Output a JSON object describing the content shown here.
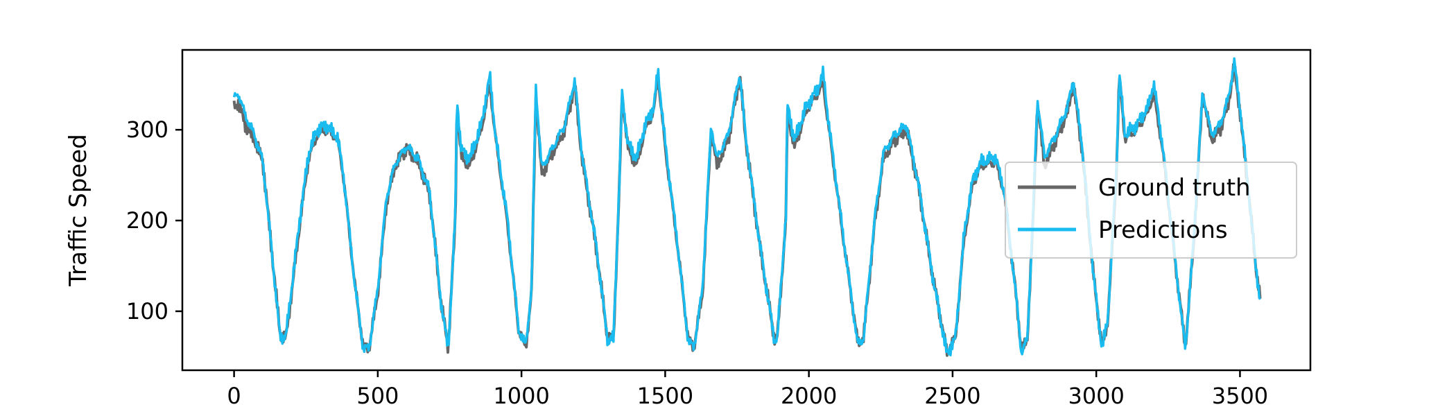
{
  "chart_data": {
    "type": "line",
    "title": "",
    "xlabel": "",
    "ylabel": "Traffic Speed",
    "xlim": [
      -180,
      3745
    ],
    "ylim": [
      35,
      388
    ],
    "xticks": [
      0,
      500,
      1000,
      1500,
      2000,
      2500,
      3000,
      3500
    ],
    "yticks": [
      100,
      200,
      300
    ],
    "legend_position": "right",
    "grid": false,
    "x_count": 3570,
    "series": [
      {
        "name": "Ground truth",
        "color": "#666666",
        "keypoints": [
          [
            0,
            325
          ],
          [
            15,
            330
          ],
          [
            40,
            305
          ],
          [
            70,
            290
          ],
          [
            100,
            265
          ],
          [
            130,
            170
          ],
          [
            160,
            75
          ],
          [
            180,
            70
          ],
          [
            200,
            120
          ],
          [
            230,
            200
          ],
          [
            260,
            270
          ],
          [
            290,
            295
          ],
          [
            320,
            300
          ],
          [
            360,
            290
          ],
          [
            380,
            250
          ],
          [
            420,
            130
          ],
          [
            450,
            60
          ],
          [
            470,
            60
          ],
          [
            500,
            120
          ],
          [
            530,
            220
          ],
          [
            560,
            260
          ],
          [
            600,
            280
          ],
          [
            640,
            265
          ],
          [
            680,
            230
          ],
          [
            720,
            110
          ],
          [
            745,
            60
          ],
          [
            770,
            200
          ],
          [
            775,
            330
          ],
          [
            790,
            270
          ],
          [
            820,
            260
          ],
          [
            860,
            300
          ],
          [
            890,
            350
          ],
          [
            910,
            290
          ],
          [
            950,
            200
          ],
          [
            990,
            80
          ],
          [
            1015,
            60
          ],
          [
            1035,
            120
          ],
          [
            1050,
            340
          ],
          [
            1070,
            250
          ],
          [
            1100,
            270
          ],
          [
            1150,
            300
          ],
          [
            1185,
            350
          ],
          [
            1210,
            270
          ],
          [
            1260,
            170
          ],
          [
            1300,
            70
          ],
          [
            1320,
            70
          ],
          [
            1340,
            230
          ],
          [
            1350,
            340
          ],
          [
            1370,
            280
          ],
          [
            1400,
            260
          ],
          [
            1430,
            300
          ],
          [
            1460,
            320
          ],
          [
            1475,
            360
          ],
          [
            1500,
            280
          ],
          [
            1540,
            180
          ],
          [
            1580,
            70
          ],
          [
            1600,
            60
          ],
          [
            1630,
            120
          ],
          [
            1660,
            300
          ],
          [
            1680,
            260
          ],
          [
            1720,
            290
          ],
          [
            1760,
            360
          ],
          [
            1780,
            290
          ],
          [
            1830,
            170
          ],
          [
            1880,
            70
          ],
          [
            1890,
            70
          ],
          [
            1920,
            200
          ],
          [
            1925,
            320
          ],
          [
            1950,
            280
          ],
          [
            1990,
            320
          ],
          [
            2030,
            340
          ],
          [
            2050,
            350
          ],
          [
            2070,
            300
          ],
          [
            2120,
            180
          ],
          [
            2170,
            65
          ],
          [
            2190,
            70
          ],
          [
            2230,
            200
          ],
          [
            2260,
            270
          ],
          [
            2300,
            290
          ],
          [
            2340,
            300
          ],
          [
            2380,
            240
          ],
          [
            2430,
            140
          ],
          [
            2480,
            55
          ],
          [
            2510,
            70
          ],
          [
            2540,
            180
          ],
          [
            2570,
            240
          ],
          [
            2600,
            260
          ],
          [
            2650,
            265
          ],
          [
            2680,
            230
          ],
          [
            2720,
            120
          ],
          [
            2740,
            55
          ],
          [
            2760,
            70
          ],
          [
            2780,
            200
          ],
          [
            2795,
            330
          ],
          [
            2820,
            260
          ],
          [
            2860,
            290
          ],
          [
            2900,
            320
          ],
          [
            2920,
            350
          ],
          [
            2950,
            280
          ],
          [
            2990,
            140
          ],
          [
            3020,
            60
          ],
          [
            3040,
            90
          ],
          [
            3070,
            250
          ],
          [
            3080,
            360
          ],
          [
            3100,
            290
          ],
          [
            3140,
            300
          ],
          [
            3180,
            320
          ],
          [
            3200,
            340
          ],
          [
            3230,
            280
          ],
          [
            3280,
            140
          ],
          [
            3310,
            60
          ],
          [
            3340,
            180
          ],
          [
            3370,
            340
          ],
          [
            3400,
            290
          ],
          [
            3430,
            300
          ],
          [
            3460,
            330
          ],
          [
            3480,
            370
          ],
          [
            3500,
            320
          ],
          [
            3530,
            230
          ],
          [
            3555,
            150
          ],
          [
            3570,
            115
          ]
        ]
      },
      {
        "name": "Predictions",
        "color": "#1abcf0",
        "keypoints": [
          [
            0,
            335
          ],
          [
            15,
            340
          ],
          [
            40,
            315
          ],
          [
            70,
            295
          ],
          [
            100,
            265
          ],
          [
            130,
            170
          ],
          [
            160,
            72
          ],
          [
            180,
            72
          ],
          [
            200,
            125
          ],
          [
            230,
            205
          ],
          [
            260,
            275
          ],
          [
            290,
            300
          ],
          [
            320,
            305
          ],
          [
            360,
            292
          ],
          [
            380,
            252
          ],
          [
            420,
            130
          ],
          [
            450,
            58
          ],
          [
            470,
            60
          ],
          [
            500,
            125
          ],
          [
            530,
            225
          ],
          [
            560,
            262
          ],
          [
            600,
            282
          ],
          [
            640,
            268
          ],
          [
            680,
            232
          ],
          [
            720,
            110
          ],
          [
            745,
            58
          ],
          [
            770,
            205
          ],
          [
            775,
            338
          ],
          [
            790,
            278
          ],
          [
            820,
            268
          ],
          [
            860,
            305
          ],
          [
            890,
            360
          ],
          [
            910,
            292
          ],
          [
            950,
            205
          ],
          [
            990,
            80
          ],
          [
            1015,
            62
          ],
          [
            1035,
            125
          ],
          [
            1050,
            348
          ],
          [
            1070,
            258
          ],
          [
            1100,
            275
          ],
          [
            1150,
            305
          ],
          [
            1185,
            355
          ],
          [
            1210,
            275
          ],
          [
            1260,
            172
          ],
          [
            1300,
            68
          ],
          [
            1320,
            70
          ],
          [
            1340,
            235
          ],
          [
            1350,
            340
          ],
          [
            1370,
            285
          ],
          [
            1400,
            268
          ],
          [
            1430,
            305
          ],
          [
            1460,
            325
          ],
          [
            1475,
            365
          ],
          [
            1500,
            285
          ],
          [
            1540,
            182
          ],
          [
            1580,
            68
          ],
          [
            1600,
            60
          ],
          [
            1630,
            125
          ],
          [
            1660,
            305
          ],
          [
            1680,
            268
          ],
          [
            1720,
            295
          ],
          [
            1760,
            362
          ],
          [
            1780,
            292
          ],
          [
            1830,
            172
          ],
          [
            1880,
            68
          ],
          [
            1890,
            70
          ],
          [
            1920,
            205
          ],
          [
            1925,
            328
          ],
          [
            1950,
            288
          ],
          [
            1990,
            325
          ],
          [
            2030,
            345
          ],
          [
            2050,
            362
          ],
          [
            2070,
            305
          ],
          [
            2120,
            182
          ],
          [
            2170,
            63
          ],
          [
            2190,
            70
          ],
          [
            2230,
            205
          ],
          [
            2260,
            275
          ],
          [
            2300,
            295
          ],
          [
            2340,
            305
          ],
          [
            2380,
            242
          ],
          [
            2430,
            140
          ],
          [
            2480,
            53
          ],
          [
            2510,
            70
          ],
          [
            2540,
            185
          ],
          [
            2570,
            245
          ],
          [
            2600,
            265
          ],
          [
            2650,
            270
          ],
          [
            2680,
            232
          ],
          [
            2720,
            120
          ],
          [
            2740,
            53
          ],
          [
            2760,
            70
          ],
          [
            2780,
            205
          ],
          [
            2795,
            335
          ],
          [
            2820,
            270
          ],
          [
            2860,
            295
          ],
          [
            2900,
            325
          ],
          [
            2920,
            355
          ],
          [
            2950,
            285
          ],
          [
            2990,
            140
          ],
          [
            3020,
            58
          ],
          [
            3040,
            92
          ],
          [
            3070,
            255
          ],
          [
            3080,
            362
          ],
          [
            3100,
            295
          ],
          [
            3140,
            305
          ],
          [
            3180,
            325
          ],
          [
            3200,
            352
          ],
          [
            3230,
            285
          ],
          [
            3280,
            140
          ],
          [
            3310,
            58
          ],
          [
            3340,
            185
          ],
          [
            3370,
            342
          ],
          [
            3400,
            295
          ],
          [
            3430,
            305
          ],
          [
            3460,
            335
          ],
          [
            3480,
            375
          ],
          [
            3500,
            325
          ],
          [
            3530,
            232
          ],
          [
            3555,
            150
          ],
          [
            3570,
            112
          ]
        ]
      }
    ]
  }
}
